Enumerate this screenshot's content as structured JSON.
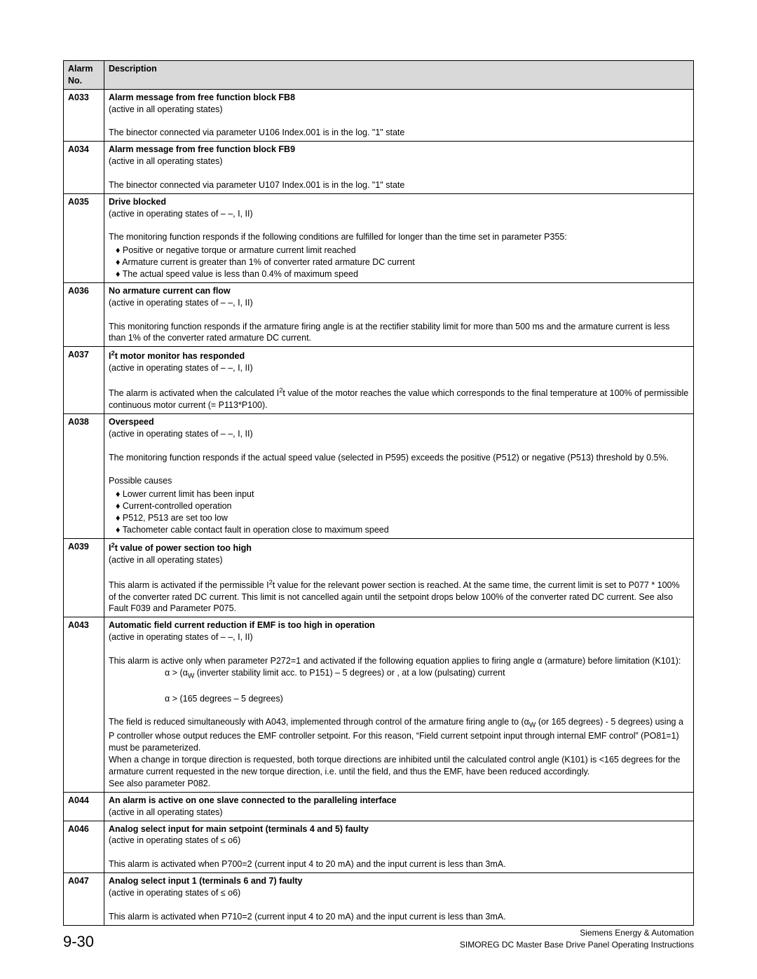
{
  "table": {
    "header": {
      "alarm_no": "Alarm No.",
      "description": "Description"
    },
    "rows": [
      {
        "code": "A033",
        "title": "Alarm message from free function block FB8",
        "state": "(active in all operating states)",
        "paras": [
          "The binector connected via parameter U106 Index.001  is in the log. \"1\" state"
        ]
      },
      {
        "code": "A034",
        "title": "Alarm message from free function block FB9",
        "state": "(active in all operating states)",
        "paras": [
          "The binector connected via parameter U107 Index.001  is in the log. \"1\" state"
        ]
      },
      {
        "code": "A035",
        "title": "Drive blocked",
        "state": "(active in operating states of  – –, I, II)",
        "paras": [
          "The monitoring function responds if the following conditions are fulfilled for longer than the time set in parameter P355:"
        ],
        "bullets": [
          "Positive or negative torque or armature current limit reached",
          "Armature current is greater than 1% of converter rated armature DC current",
          "The actual speed value is less than 0.4% of maximum speed"
        ]
      },
      {
        "code": "A036",
        "title": "No armature current can flow",
        "state": "(active in operating states of  – –, I, II)",
        "paras": [
          "This monitoring function responds if the armature firing angle is at the rectifier stability limit for more than 500 ms and the armature current is less than 1% of the converter rated armature DC current."
        ]
      },
      {
        "code": "A037",
        "title_html": "I<span class=\"sup\">2</span>t motor monitor has responded",
        "state": "(active in operating states of  – –, I, II)",
        "paras_html": [
          "The alarm is activated when the calculated I<span class=\"sup\">2</span>t value of the motor reaches the value which corresponds to the final temperature at 100% of permissible continuous motor current (= P113*P100)."
        ]
      },
      {
        "code": "A038",
        "title": "Overspeed",
        "state": "(active in operating states of  – –, I, II)",
        "paras": [
          "The monitoring function responds if the actual speed value (selected in P595) exceeds the positive (P512) or negative (P513) threshold by 0.5%.",
          "Possible causes"
        ],
        "bullets": [
          "Lower current limit has been input",
          "Current-controlled operation",
          "P512, P513 are set too low",
          "Tachometer cable contact fault in operation close to maximum speed"
        ]
      },
      {
        "code": "A039",
        "title_html": "I<span class=\"sup\">2</span>t value of power section too high",
        "state": "(active in all operating states)",
        "paras_html": [
          "This alarm is activated if the permissible I<span class=\"sup\">2</span>t value for the relevant power section is reached. At the same time, the current limit is set to P077 * 100% of the converter rated DC current. This limit is not cancelled again until the setpoint drops below 100% of the converter rated DC current. See also Fault F039 and Parameter P075."
        ]
      },
      {
        "code": "A043",
        "title": "Automatic field current reduction if EMF is too high in operation",
        "state": "(active in operating states of  – –, I, II)",
        "paras_html": [
          "This alarm is active only when parameter P272=1 and activated if the following equation applies to firing angle α (armature) before limitation (K101):",
          "<span class=\"indent\">α > (α<sub style=\"font-size:0.8em\">W</sub> (inverter stability limit acc. to P151) – 5 degrees) or , at a low (pulsating) current</span>",
          "<span class=\"indent\">α > (165 degrees – 5 degrees)</span>",
          "The field is reduced simultaneously with A043, implemented through control of the armature firing angle to (α<sub style=\"font-size:0.8em\">W</sub> (or 165 degrees) - 5 degrees) using a P controller whose output reduces the EMF controller setpoint. For this reason, “Field current setpoint input through internal EMF control” (PO81=1) must be parameterized.",
          "When a change in torque direction is requested, both torque directions are inhibited until the calculated control angle (K101) is &lt;165 degrees for the armature current requested in the new torque direction, i.e. until the field, and thus the EMF, have been reduced accordingly.",
          "See also parameter P082."
        ]
      },
      {
        "code": "A044",
        "title": "An alarm is active on one slave connected to the paralleling interface",
        "state": "(active in all operating states)"
      },
      {
        "code": "A046",
        "title": "Analog select input for main setpoint (terminals 4 and 5) faulty",
        "state": "(active in operating states of ≤ o6)",
        "paras": [
          "This alarm is activated when P700=2 (current input 4 to 20 mA) and the input current is less than 3mA."
        ]
      },
      {
        "code": "A047",
        "title": "Analog select input 1 (terminals 6 and 7) faulty",
        "state": "(active in operating states of ≤ o6)",
        "paras": [
          "This alarm is activated when P710=2 (current input 4 to 20 mA) and the input current is less than 3mA."
        ]
      }
    ]
  },
  "footer": {
    "page_num": "9-30",
    "right1": "Siemens Energy & Automation",
    "right2": "SIMOREG DC Master Base Drive Panel   Operating Instructions"
  }
}
